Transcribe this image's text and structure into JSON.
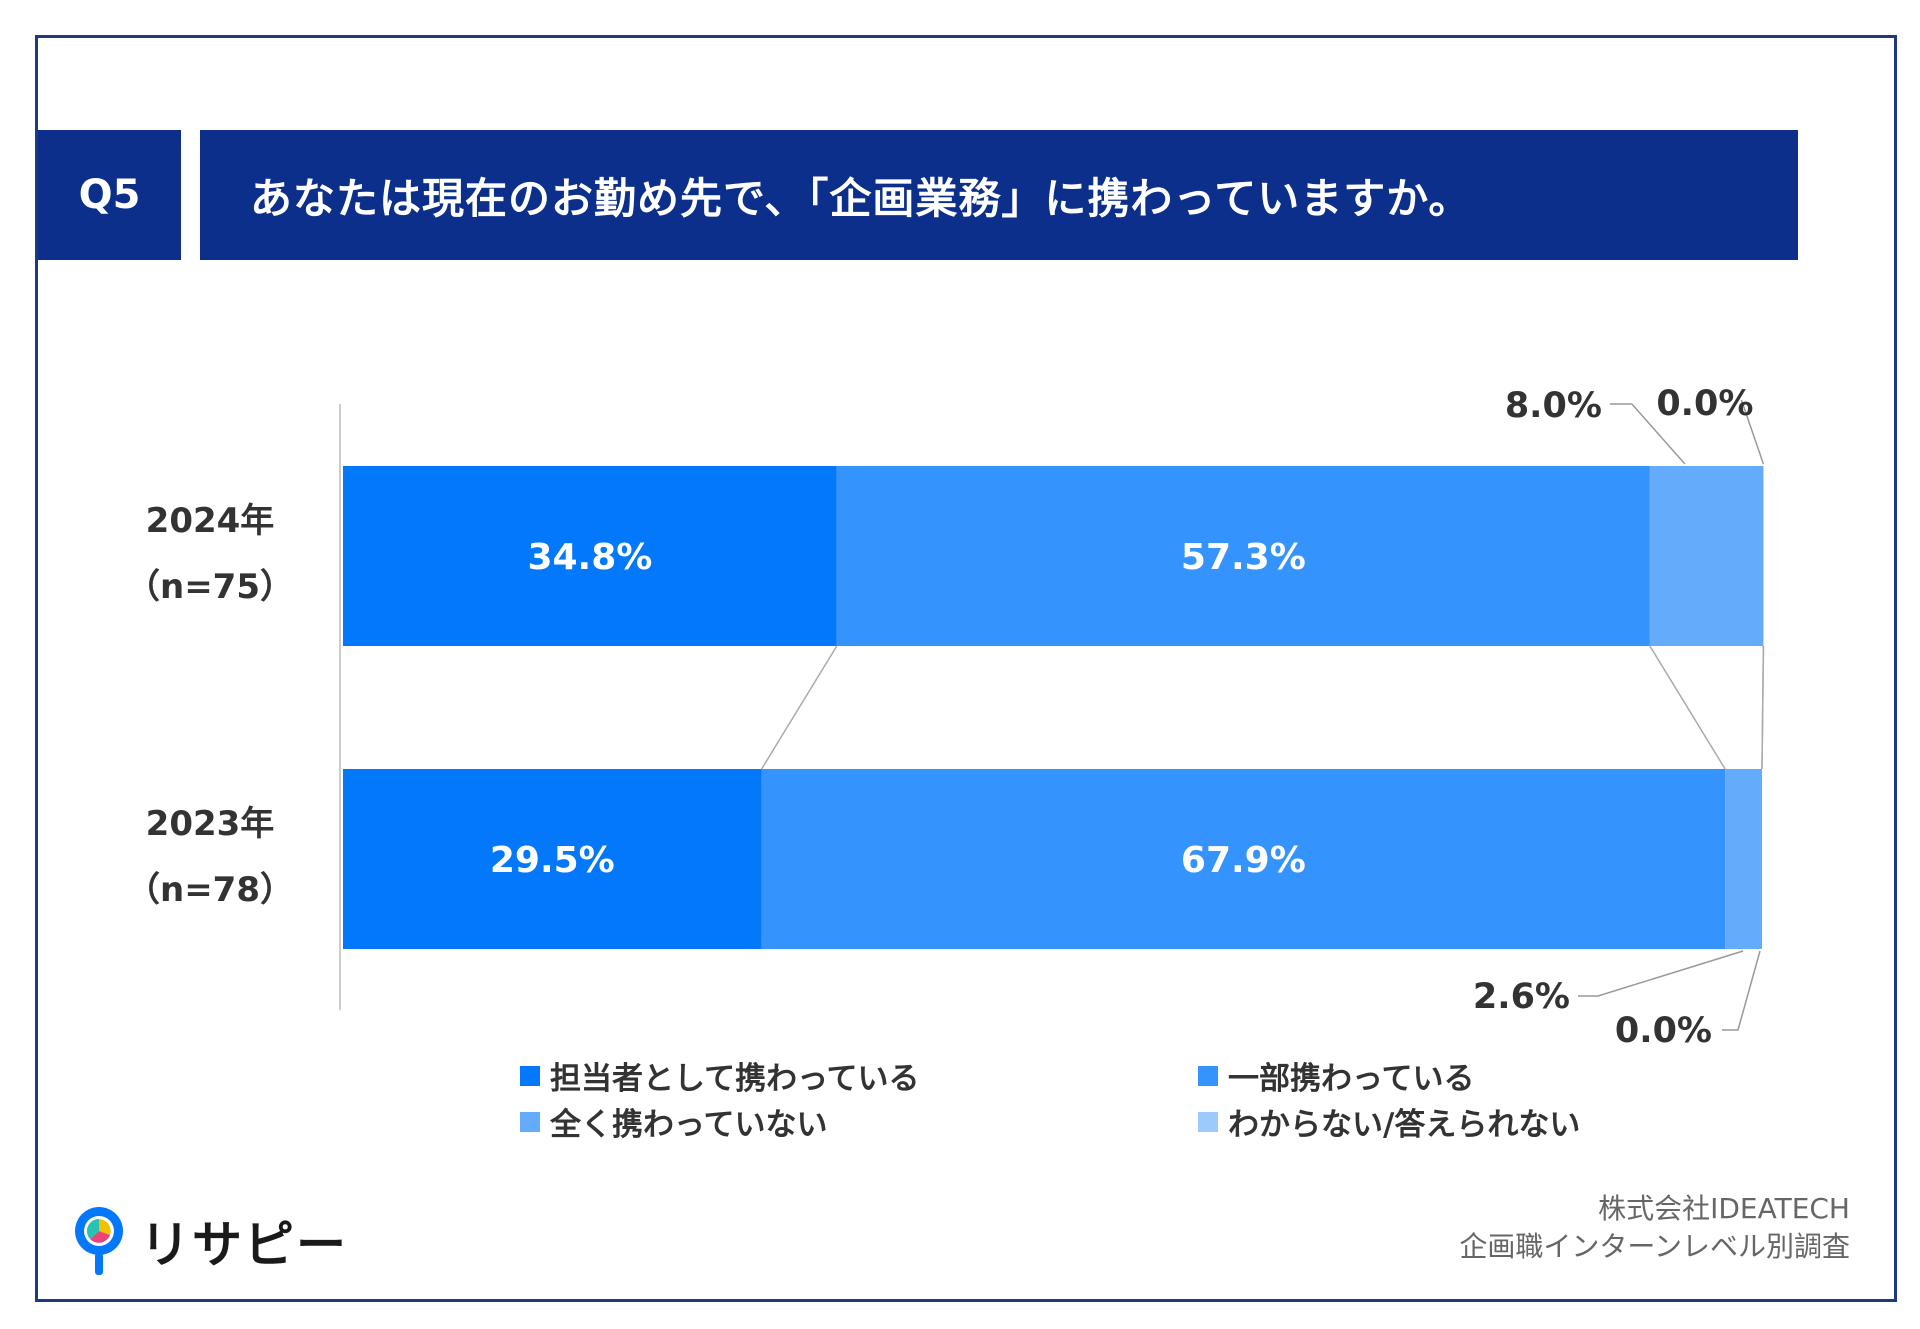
{
  "question": {
    "number": "Q5",
    "text": "あなたは現在のお勤め先で、「企画業務」に携わっていますか。"
  },
  "colors": {
    "frame": "#1b3a80",
    "header_bg": "#0b2f8a",
    "series": [
      "#0478fb",
      "#3593fd",
      "#64abfb",
      "#9ccafc"
    ]
  },
  "chart_data": {
    "type": "bar",
    "orientation": "horizontal",
    "stacked": true,
    "percent_scale": [
      0,
      100
    ],
    "categories": [
      {
        "year": "2024年",
        "n": "（n=75）"
      },
      {
        "year": "2023年",
        "n": "（n=78）"
      }
    ],
    "series": [
      {
        "name": "担当者として携わっている",
        "values": [
          34.8,
          29.5
        ],
        "labels": [
          "34.8%",
          "29.5%"
        ]
      },
      {
        "name": "一部携わっている",
        "values": [
          57.3,
          67.9
        ],
        "labels": [
          "57.3%",
          "67.9%"
        ]
      },
      {
        "name": "全く携わっていない",
        "values": [
          8.0,
          2.6
        ],
        "labels": [
          "8.0%",
          "2.6%"
        ]
      },
      {
        "name": "わからない/答えられない",
        "values": [
          0.0,
          0.0
        ],
        "labels": [
          "0.0%",
          "0.0%"
        ]
      }
    ],
    "legend_position": "bottom"
  },
  "branding": {
    "logo_text": "リサピー",
    "source_line1": "株式会社IDEATECH",
    "source_line2": "企画職インターンレベル別調査"
  }
}
